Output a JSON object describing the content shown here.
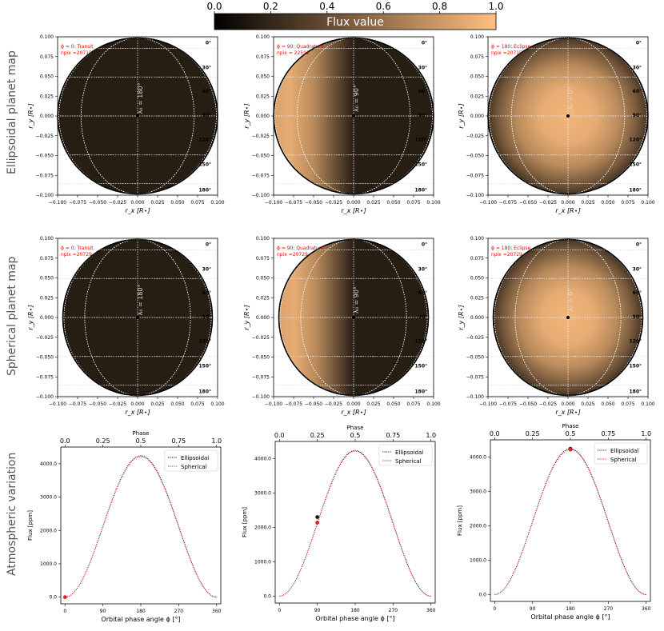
{
  "colorbar": {
    "label": "Flux value",
    "ticks": [
      "0.0",
      "0.2",
      "0.4",
      "0.6",
      "0.8",
      "1.0"
    ],
    "colors": {
      "start": "#000000",
      "end": "#ffbf80"
    }
  },
  "row_labels": [
    "Ellipsoidal planet map",
    "Spherical planet  map",
    "Atmospheric variation"
  ],
  "chart_data": [
    {
      "type": "heatmap",
      "shape": "ellipsoidal",
      "title": "ϕ = 0: Transit",
      "npix": "npix =20715",
      "phase": 0,
      "day_center_lon": "λ₀ = 180°",
      "xlabel": "r_x [R⋆]",
      "ylabel": "r_y [R⋆]",
      "xlim": [
        -0.1,
        0.1
      ],
      "ylim": [
        -0.1,
        0.1
      ],
      "xticks": [
        "−0.100",
        "−0.075",
        "−0.050",
        "−0.025",
        "0.000",
        "0.025",
        "0.050",
        "0.075",
        "0.100"
      ],
      "yticks": [
        "0.100",
        "0.075",
        "0.050",
        "0.025",
        "0.000",
        "−0.025",
        "−0.050",
        "−0.075",
        "−0.100"
      ],
      "lat_labels": [
        "0°",
        "30°",
        "60°",
        "90°",
        "120°",
        "150°",
        "180°"
      ]
    },
    {
      "type": "heatmap",
      "shape": "ellipsoidal",
      "title": "ϕ = 90: Quadrature",
      "npix": "npix = 22591",
      "phase": 90,
      "day_center_lon": "λ₀ = 90°",
      "xlabel": "r_x [R⋆]",
      "ylabel": "r_y [R⋆]",
      "xlim": [
        -0.1,
        0.1
      ],
      "ylim": [
        -0.1,
        0.1
      ],
      "xticks": [
        "−0.100",
        "−0.075",
        "−0.050",
        "−0.025",
        "0.000",
        "0.025",
        "0.050",
        "0.075",
        "0.100"
      ],
      "yticks": [
        "0.100",
        "0.075",
        "0.050",
        "0.025",
        "0.000",
        "−0.025",
        "−0.050",
        "−0.075",
        "−0.100"
      ],
      "lat_labels": [
        "0°",
        "30°",
        "60°",
        "90°",
        "120°",
        "150°",
        "180°"
      ]
    },
    {
      "type": "heatmap",
      "shape": "ellipsoidal",
      "title": "ϕ = 180: Eclipse",
      "npix": "npix =20715",
      "phase": 180,
      "day_center_lon": "λ₀ = 0°",
      "xlabel": "r_x [R⋆]",
      "ylabel": "r_y [R⋆]",
      "xlim": [
        -0.1,
        0.1
      ],
      "ylim": [
        -0.1,
        0.1
      ],
      "xticks": [
        "−0.100",
        "−0.075",
        "−0.050",
        "−0.025",
        "0.000",
        "0.025",
        "0.050",
        "0.075",
        "0.100"
      ],
      "yticks": [
        "0.100",
        "0.075",
        "0.050",
        "0.025",
        "0.000",
        "−0.025",
        "−0.050",
        "−0.075",
        "−0.100"
      ],
      "lat_labels": [
        "0°",
        "30°",
        "60°",
        "90°",
        "120°",
        "150°",
        "180°"
      ]
    },
    {
      "type": "heatmap",
      "shape": "spherical",
      "title": "ϕ = 0: Transit",
      "npix": "npix =20729",
      "phase": 0,
      "day_center_lon": "λ₀ = 180°",
      "xlabel": "r_x [R⋆]",
      "ylabel": "r_y [R⋆]",
      "xlim": [
        -0.1,
        0.1
      ],
      "ylim": [
        -0.1,
        0.1
      ],
      "xticks": [
        "−0.100",
        "−0.075",
        "−0.050",
        "−0.025",
        "0.000",
        "0.025",
        "0.050",
        "0.075",
        "0.100"
      ],
      "yticks": [
        "0.100",
        "0.075",
        "0.050",
        "0.025",
        "0.000",
        "−0.025",
        "−0.050",
        "−0.075",
        "−0.100"
      ],
      "lat_labels": [
        "0°",
        "30°",
        "60°",
        "90°",
        "120°",
        "150°",
        "180°"
      ]
    },
    {
      "type": "heatmap",
      "shape": "spherical",
      "title": "ϕ = 90: Quadrature",
      "npix": "npix =20729",
      "phase": 90,
      "day_center_lon": "λ₀ = 90°",
      "xlabel": "r_x [R⋆]",
      "ylabel": "r_y [R⋆]",
      "xlim": [
        -0.1,
        0.1
      ],
      "ylim": [
        -0.1,
        0.1
      ],
      "xticks": [
        "−0.100",
        "−0.075",
        "−0.050",
        "−0.025",
        "0.000",
        "0.025",
        "0.050",
        "0.075",
        "0.100"
      ],
      "yticks": [
        "0.100",
        "0.075",
        "0.050",
        "0.025",
        "0.000",
        "−0.025",
        "−0.050",
        "−0.075",
        "−0.100"
      ],
      "lat_labels": [
        "0°",
        "30°",
        "60°",
        "90°",
        "120°",
        "150°",
        "180°"
      ]
    },
    {
      "type": "heatmap",
      "shape": "spherical",
      "title": "ϕ = 180: Eclipse",
      "npix": "npix =20729",
      "phase": 180,
      "day_center_lon": "λ₀ = 0°",
      "xlabel": "r_x [R⋆]",
      "ylabel": "r_y [R⋆]",
      "xlim": [
        -0.1,
        0.1
      ],
      "ylim": [
        -0.1,
        0.1
      ],
      "xticks": [
        "−0.100",
        "−0.075",
        "−0.050",
        "−0.025",
        "0.000",
        "0.025",
        "0.050",
        "0.075",
        "0.100"
      ],
      "yticks": [
        "0.100",
        "0.075",
        "0.050",
        "0.025",
        "0.000",
        "−0.025",
        "−0.050",
        "−0.075",
        "−0.100"
      ],
      "lat_labels": [
        "0°",
        "30°",
        "60°",
        "90°",
        "120°",
        "150°",
        "180°"
      ]
    },
    {
      "type": "line",
      "xlabel": "Orbital phase angle ϕ [°]",
      "ylabel": "Flux [ppm]",
      "top_label": "Phase",
      "xlim": [
        -10,
        370
      ],
      "ylim": [
        -200,
        4500
      ],
      "xticks": [
        0,
        90,
        180,
        270,
        360
      ],
      "xtick_labels": [
        "0",
        "90",
        "180",
        "270",
        "360"
      ],
      "top_ticks": [
        "0.0",
        "0.25",
        "0.5",
        "0.75",
        "1.0"
      ],
      "yticks": [
        0,
        1000,
        2000,
        3000,
        4000
      ],
      "ytick_labels": [
        "0.0",
        "1000.0",
        "2000.0",
        "3000.0",
        "4000.0"
      ],
      "series": [
        {
          "name": "Ellipsoidal",
          "color": "#1a1a1a",
          "peak": 4240,
          "x": [
            0,
            30,
            60,
            90,
            120,
            150,
            180,
            210,
            240,
            270,
            300,
            330,
            360
          ]
        },
        {
          "name": "Spherical",
          "color": "#d62728",
          "peak": 4215,
          "x": [
            0,
            30,
            60,
            90,
            120,
            150,
            180,
            210,
            240,
            270,
            300,
            330,
            360
          ]
        }
      ],
      "markers": [
        {
          "series": "Spherical",
          "x": 0,
          "y": 0
        }
      ]
    },
    {
      "type": "line",
      "xlabel": "Orbital phase angle ϕ [°]",
      "ylabel": "Flux [ppm]",
      "top_label": "Phase",
      "xlim": [
        -10,
        370
      ],
      "ylim": [
        -200,
        4500
      ],
      "xticks": [
        0,
        90,
        180,
        270,
        360
      ],
      "xtick_labels": [
        "0",
        "90",
        "180",
        "270",
        "360"
      ],
      "top_ticks": [
        "0.0",
        "0.25",
        "0.5",
        "0.75",
        "1.0"
      ],
      "yticks": [
        0,
        1000,
        2000,
        3000,
        4000
      ],
      "ytick_labels": [
        "0.0",
        "1000.0",
        "2000.0",
        "3000.0",
        "4000.0"
      ],
      "series": [
        {
          "name": "Ellipsoidal",
          "color": "#1a1a1a",
          "peak": 4240,
          "x": [
            0,
            30,
            60,
            90,
            120,
            150,
            180,
            210,
            240,
            270,
            300,
            330,
            360
          ]
        },
        {
          "name": "Spherical",
          "color": "#d62728",
          "peak": 4215,
          "x": [
            0,
            30,
            60,
            90,
            120,
            150,
            180,
            210,
            240,
            270,
            300,
            330,
            360
          ]
        }
      ],
      "markers": [
        {
          "series": "Ellipsoidal",
          "x": 90,
          "y": 2300
        },
        {
          "series": "Spherical",
          "x": 90,
          "y": 2140
        }
      ]
    },
    {
      "type": "line",
      "xlabel": "Orbital phase angle ϕ [°]",
      "ylabel": "Flux [ppm]",
      "top_label": "Phase",
      "xlim": [
        -10,
        370
      ],
      "ylim": [
        -200,
        4500
      ],
      "xticks": [
        0,
        90,
        180,
        270,
        360
      ],
      "xtick_labels": [
        "0",
        "90",
        "180",
        "270",
        "360"
      ],
      "top_ticks": [
        "0.0",
        "0.25",
        "0.5",
        "0.75",
        "1.0"
      ],
      "yticks": [
        0,
        1000,
        2000,
        3000,
        4000
      ],
      "ytick_labels": [
        "0.0",
        "1000.0",
        "2000.0",
        "3000.0",
        "4000.0"
      ],
      "series": [
        {
          "name": "Ellipsoidal",
          "color": "#1a1a1a",
          "peak": 4240,
          "x": [
            0,
            30,
            60,
            90,
            120,
            150,
            180,
            210,
            240,
            270,
            300,
            330,
            360
          ]
        },
        {
          "name": "Spherical",
          "color": "#d62728",
          "peak": 4215,
          "x": [
            0,
            30,
            60,
            90,
            120,
            150,
            180,
            210,
            240,
            270,
            300,
            330,
            360
          ]
        }
      ],
      "markers": [
        {
          "series": "Ellipsoidal",
          "x": 180,
          "y": 4240
        },
        {
          "series": "Spherical",
          "x": 180,
          "y": 4215
        }
      ]
    }
  ]
}
